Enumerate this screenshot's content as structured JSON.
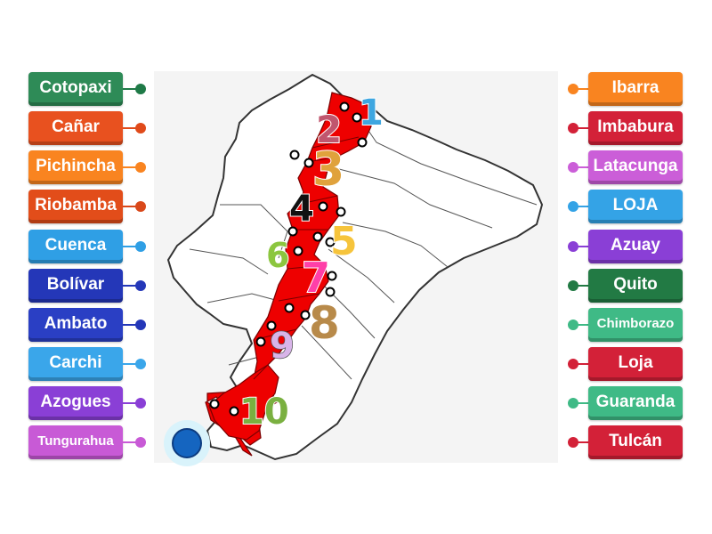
{
  "left_tiles": [
    {
      "label": "Cotopaxi",
      "color": "#2e8b57",
      "dot": "#1f7a47"
    },
    {
      "label": "Cañar",
      "color": "#e8511f",
      "dot": "#e04a1a"
    },
    {
      "label": "Pichincha",
      "color": "#f98420",
      "dot": "#f98420"
    },
    {
      "label": "Riobamba",
      "color": "#e24d1a",
      "dot": "#d9481a"
    },
    {
      "label": "Cuenca",
      "color": "#2f9fe5",
      "dot": "#2f9fe5"
    },
    {
      "label": "Bolívar",
      "color": "#2437b8",
      "dot": "#2437b8"
    },
    {
      "label": "Ambato",
      "color": "#2a3fc4",
      "dot": "#2437b8"
    },
    {
      "label": "Carchi",
      "color": "#3aa6ea",
      "dot": "#3aa6ea"
    },
    {
      "label": "Azogues",
      "color": "#8a3fd6",
      "dot": "#8a3fd6"
    },
    {
      "label": "Tungurahua",
      "color": "#c85ad6",
      "dot": "#c85ad6"
    }
  ],
  "right_tiles": [
    {
      "label": "Ibarra",
      "color": "#f98420",
      "dot": "#f98420"
    },
    {
      "label": "Imbabura",
      "color": "#d32138",
      "dot": "#d32138"
    },
    {
      "label": "Latacunga",
      "color": "#cb5ed8",
      "dot": "#cb5ed8"
    },
    {
      "label": "LOJA",
      "color": "#34a3e6",
      "dot": "#34a3e6"
    },
    {
      "label": "Azuay",
      "color": "#8a3fd6",
      "dot": "#8a3fd6"
    },
    {
      "label": "Quito",
      "color": "#227a44",
      "dot": "#227a44"
    },
    {
      "label": "Chimborazo",
      "color": "#3fba86",
      "dot": "#3fba86"
    },
    {
      "label": "Loja",
      "color": "#d32138",
      "dot": "#d32138"
    },
    {
      "label": "Guaranda",
      "color": "#3fba86",
      "dot": "#3fba86"
    },
    {
      "label": "Tulcán",
      "color": "#d32138",
      "dot": "#d32138"
    }
  ],
  "map": {
    "numbers": [
      {
        "text": "1",
        "color": "#3ea6e0"
      },
      {
        "text": "2",
        "color": "#c0566e"
      },
      {
        "text": "3",
        "color": "#e0a23c"
      },
      {
        "text": "4",
        "color": "#111111"
      },
      {
        "text": "5",
        "color": "#f6c43c"
      },
      {
        "text": "6",
        "color": "#8cc63f"
      },
      {
        "text": "7",
        "color": "#ff3fa8"
      },
      {
        "text": "8",
        "color": "#b88a4a"
      },
      {
        "text": "9",
        "color": "#d8b4e8"
      },
      {
        "text": "10",
        "color": "#7ab040"
      }
    ]
  }
}
